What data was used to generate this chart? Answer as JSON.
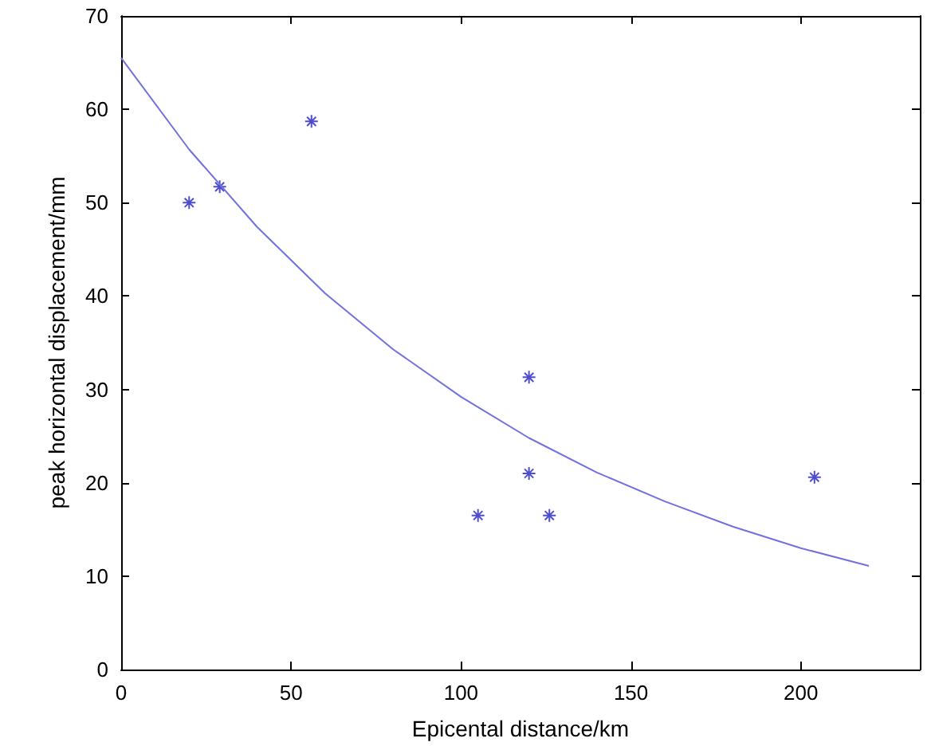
{
  "chart_data": {
    "type": "scatter",
    "xlabel": "Epicental distance/km",
    "ylabel": "peak horizontal displacement/mm",
    "series": [
      {
        "color": "#2020c0",
        "marker": "cross",
        "x": [
          20,
          29,
          56,
          105,
          120,
          120,
          126,
          204
        ],
        "values": [
          50,
          51.7,
          58.7,
          16.5,
          31.3,
          21,
          16.5,
          20.6
        ]
      },
      {
        "type": "line",
        "color": "#7070e0",
        "marker": "none",
        "line_style": "solid",
        "x": [
          0,
          20,
          40,
          60,
          80,
          100,
          120,
          140,
          160,
          180,
          200,
          220
        ],
        "values": [
          65.5,
          55.7,
          47.4,
          40.3,
          34.3,
          29.2,
          24.8,
          21.1,
          18,
          15.3,
          13,
          11.1
        ]
      }
    ],
    "xlim": [
      0,
      235
    ],
    "xticks": [
      0,
      50,
      100,
      150,
      200
    ],
    "ylim": [
      0,
      70
    ],
    "yticks": [
      0,
      10,
      20,
      30,
      40,
      50,
      60,
      70
    ],
    "grid": false
  }
}
